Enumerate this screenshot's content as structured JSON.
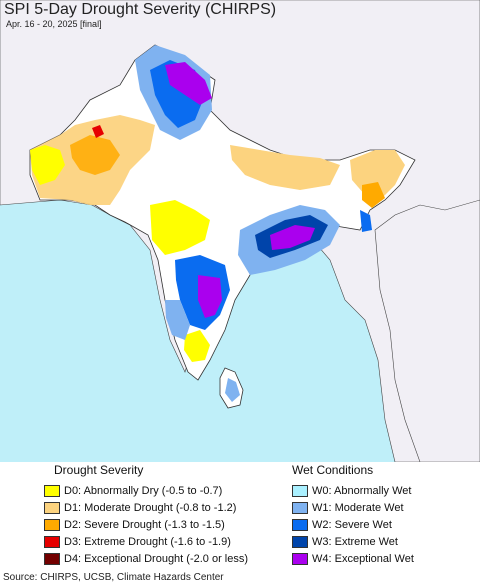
{
  "title": "SPI 5-Day Drought Severity (CHIRPS)",
  "subtitle": "Apr. 16 - 20, 2025 [final]",
  "legend": {
    "drought_heading": "Drought Severity",
    "wet_heading": "Wet Conditions",
    "drought": [
      {
        "code": "D0",
        "label": "D0: Abnormally Dry (-0.5 to -0.7)",
        "color": "#ffff00"
      },
      {
        "code": "D1",
        "label": "D1: Moderate Drought (-0.8 to -1.2)",
        "color": "#fcd37f"
      },
      {
        "code": "D2",
        "label": "D2: Severe Drought (-1.3 to -1.5)",
        "color": "#ffaa00"
      },
      {
        "code": "D3",
        "label": "D3: Extreme Drought (-1.6 to -1.9)",
        "color": "#e60000"
      },
      {
        "code": "D4",
        "label": "D4: Exceptional Drought (-2.0 or less)",
        "color": "#730000"
      }
    ],
    "wet": [
      {
        "code": "W0",
        "label": "W0: Abnormally Wet",
        "color": "#aaf0ff"
      },
      {
        "code": "W1",
        "label": "W1: Moderate Wet",
        "color": "#7fb2f0"
      },
      {
        "code": "W2",
        "label": "W2: Severe Wet",
        "color": "#0a6cf0"
      },
      {
        "code": "W3",
        "label": "W3: Extreme Wet",
        "color": "#0044aa"
      },
      {
        "code": "W4",
        "label": "W4: Exceptional Wet",
        "color": "#aa00ee"
      }
    ]
  },
  "source": "Source: CHIRPS, UCSB, Climate Hazards Center",
  "colors": {
    "ocean": "#bfeff9",
    "land": "#f5f3f8",
    "outside_land": "#eeecf2",
    "border": "#222222"
  }
}
